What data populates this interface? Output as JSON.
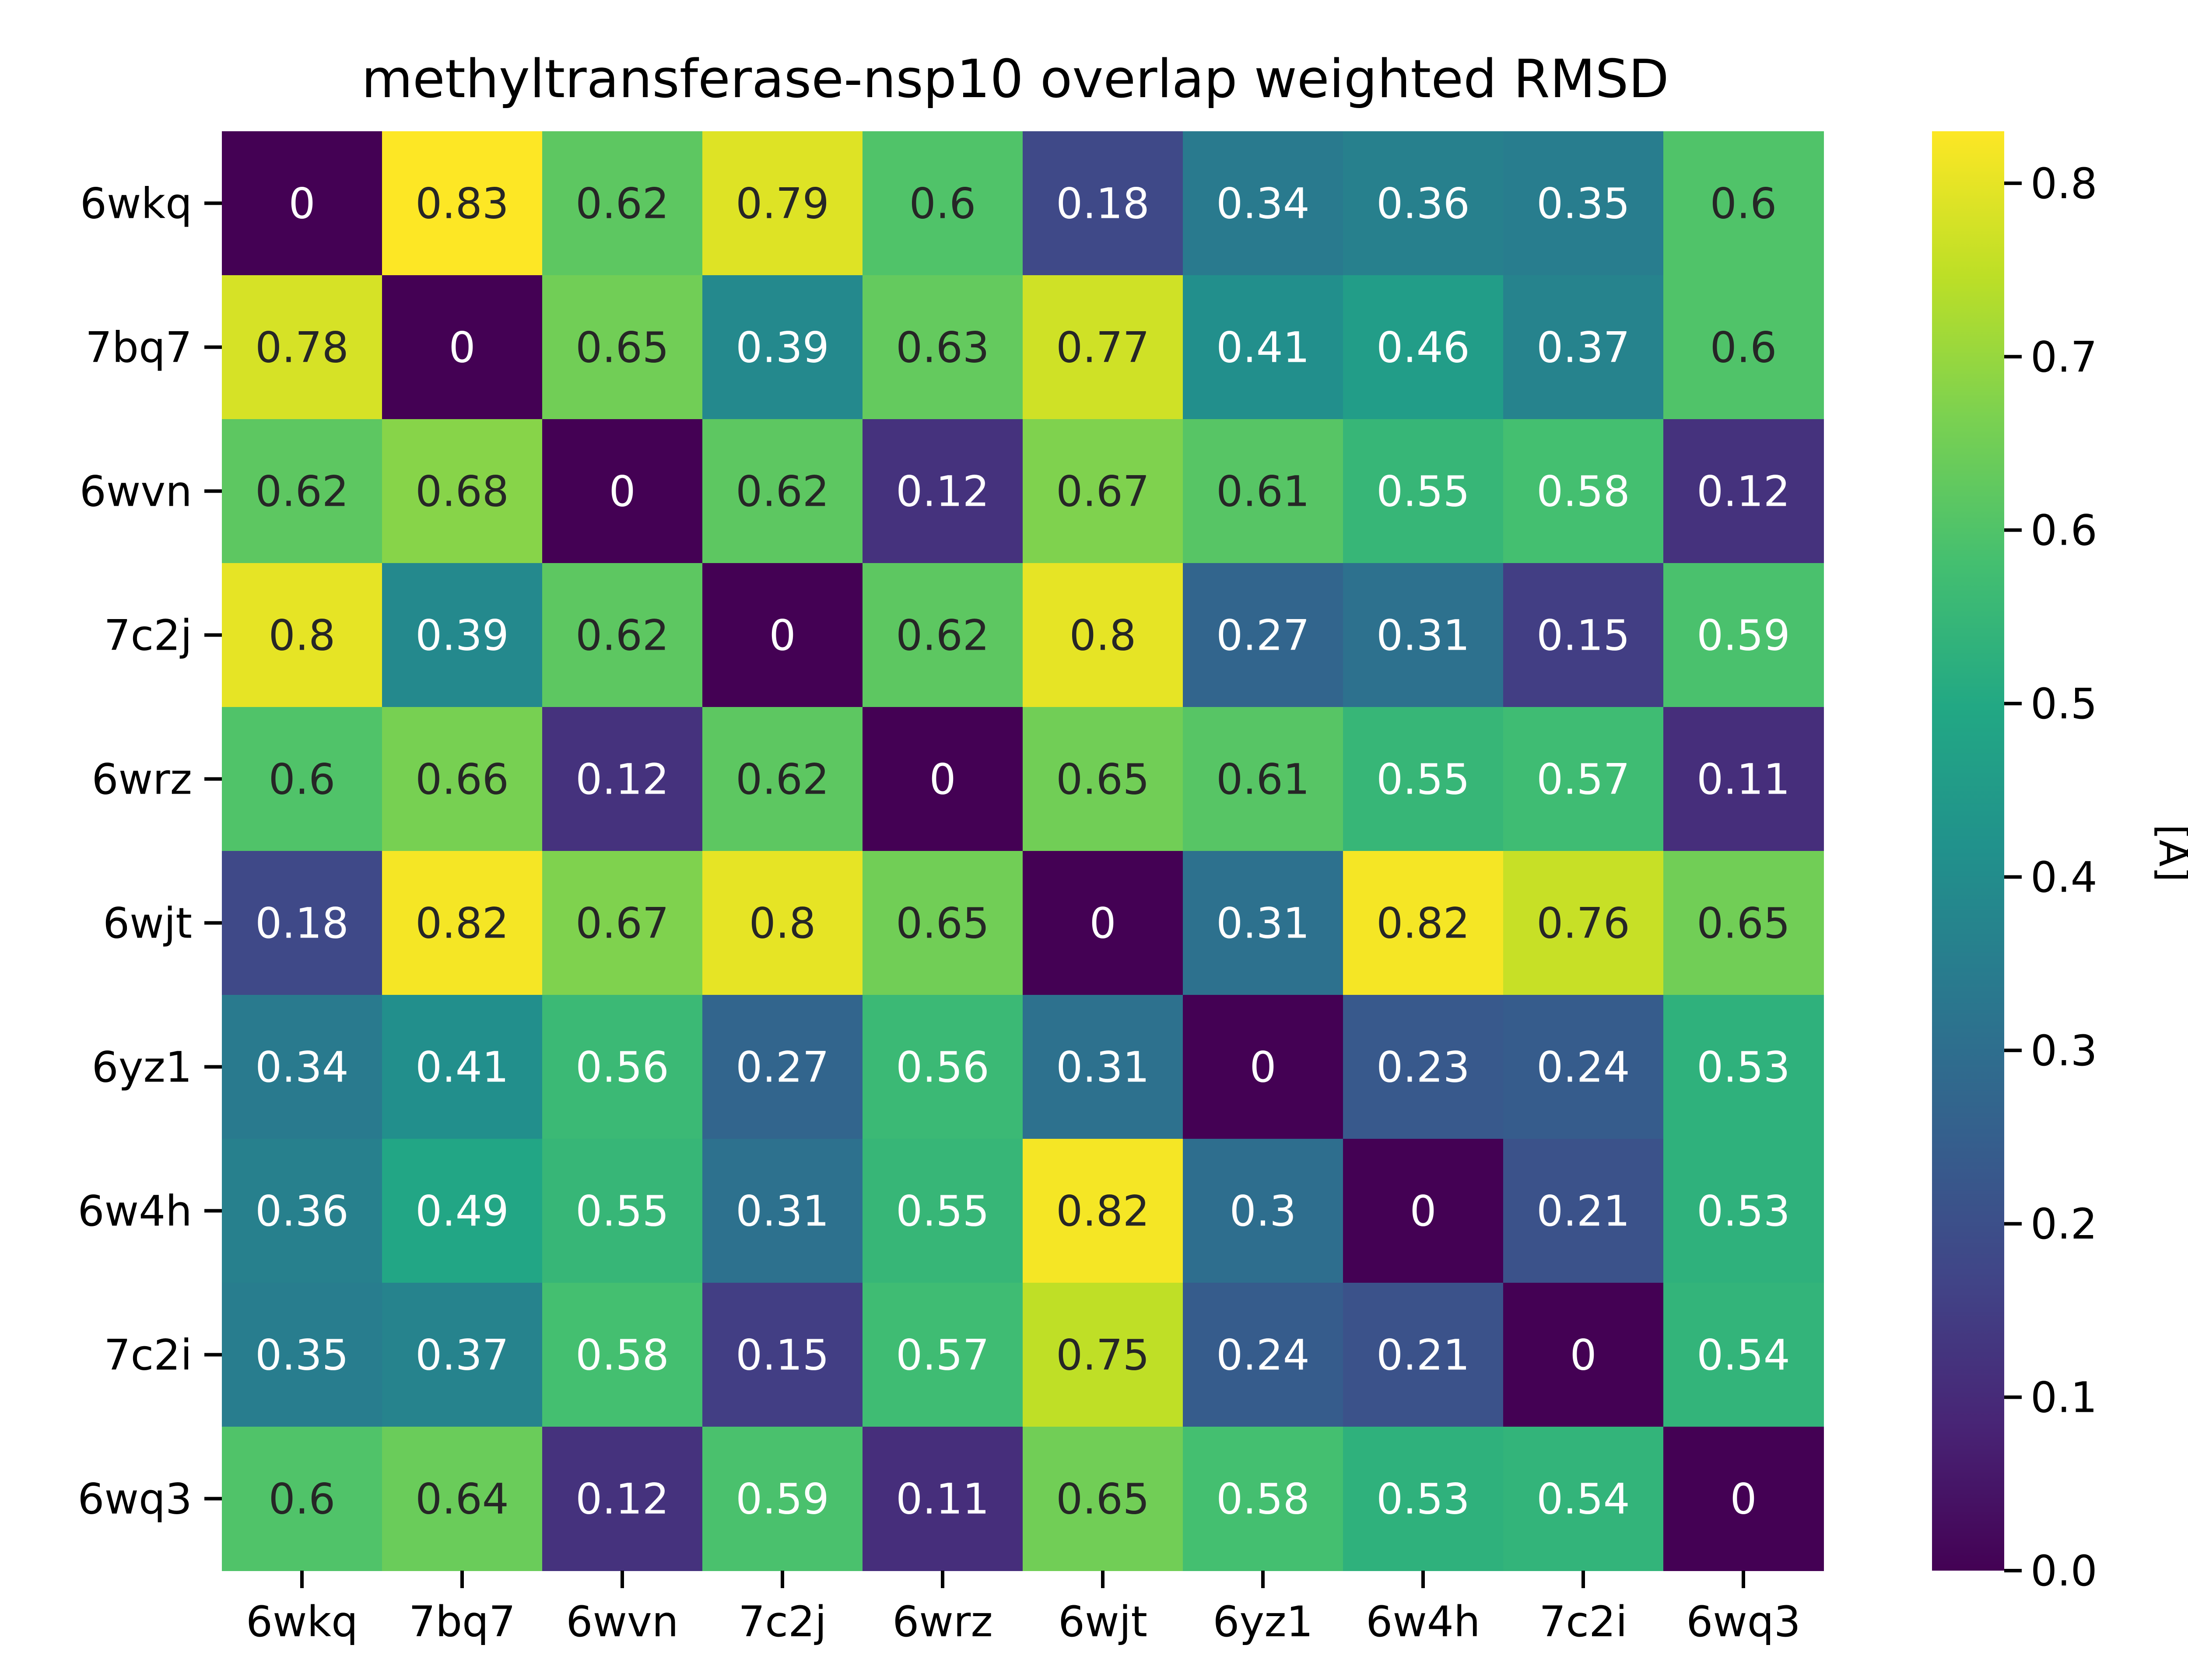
{
  "chart_data": {
    "type": "heatmap",
    "title": "methyltransferase-nsp10 overlap weighted RMSD",
    "rows": [
      "6wkq",
      "7bq7",
      "6wvn",
      "7c2j",
      "6wrz",
      "6wjt",
      "6yz1",
      "6w4h",
      "7c2i",
      "6wq3"
    ],
    "cols": [
      "6wkq",
      "7bq7",
      "6wvn",
      "7c2j",
      "6wrz",
      "6wjt",
      "6yz1",
      "6w4h",
      "7c2i",
      "6wq3"
    ],
    "values": [
      [
        0,
        0.83,
        0.62,
        0.79,
        0.6,
        0.18,
        0.34,
        0.36,
        0.35,
        0.6
      ],
      [
        0.78,
        0,
        0.65,
        0.39,
        0.63,
        0.77,
        0.41,
        0.46,
        0.37,
        0.6
      ],
      [
        0.62,
        0.68,
        0,
        0.62,
        0.12,
        0.67,
        0.61,
        0.55,
        0.58,
        0.12
      ],
      [
        0.8,
        0.39,
        0.62,
        0,
        0.62,
        0.8,
        0.27,
        0.31,
        0.15,
        0.59
      ],
      [
        0.6,
        0.66,
        0.12,
        0.62,
        0,
        0.65,
        0.61,
        0.55,
        0.57,
        0.11
      ],
      [
        0.18,
        0.82,
        0.67,
        0.8,
        0.65,
        0,
        0.31,
        0.82,
        0.76,
        0.65
      ],
      [
        0.34,
        0.41,
        0.56,
        0.27,
        0.56,
        0.31,
        0,
        0.23,
        0.24,
        0.53
      ],
      [
        0.36,
        0.49,
        0.55,
        0.31,
        0.55,
        0.82,
        0.3,
        0,
        0.21,
        0.53
      ],
      [
        0.35,
        0.37,
        0.58,
        0.15,
        0.57,
        0.75,
        0.24,
        0.21,
        0,
        0.54
      ],
      [
        0.6,
        0.64,
        0.12,
        0.59,
        0.11,
        0.65,
        0.58,
        0.53,
        0.54,
        0
      ]
    ],
    "value_range": [
      0,
      0.83
    ],
    "colormap": "viridis",
    "colorbar": {
      "label": "[Å]",
      "ticks": [
        0.0,
        0.1,
        0.2,
        0.3,
        0.4,
        0.5,
        0.6,
        0.7,
        0.8
      ],
      "tick_labels": [
        "0.0",
        "0.1",
        "0.2",
        "0.3",
        "0.4",
        "0.5",
        "0.6",
        "0.7",
        "0.8"
      ]
    },
    "text_colors": {
      "light": "#ffffff",
      "dark": "#262626"
    }
  }
}
